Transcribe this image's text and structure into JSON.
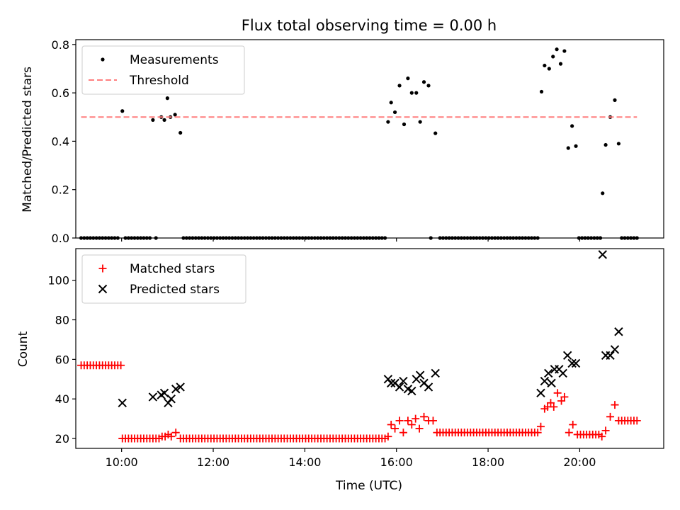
{
  "chart_data": [
    {
      "type": "scatter",
      "title": "Flux total observing time = 0.00 h",
      "xlabel": "",
      "ylabel": "Matched/Predicted stars",
      "xlim": [
        "09:00",
        "21:50"
      ],
      "ylim": [
        0,
        0.82
      ],
      "yticks": [
        0.0,
        0.2,
        0.4,
        0.6,
        0.8
      ],
      "ytick_labels": [
        "0.0",
        "0.2",
        "0.4",
        "0.6",
        "0.8"
      ],
      "legend_position": "top-left",
      "series": [
        {
          "name": "Measurements",
          "kind": "points",
          "color": "#000000",
          "zero_points": [
            "09:07",
            "09:11",
            "09:15",
            "09:19",
            "09:23",
            "09:27",
            "09:31",
            "09:35",
            "09:39",
            "09:43",
            "09:47",
            "09:51",
            "09:55",
            "10:05",
            "10:09",
            "10:13",
            "10:17",
            "10:21",
            "10:25",
            "10:29",
            "10:33",
            "10:37",
            "10:45",
            "11:21",
            "11:25",
            "11:29",
            "11:33",
            "11:37",
            "11:41",
            "11:45",
            "11:49",
            "11:53",
            "11:57",
            "12:01",
            "12:05",
            "12:09",
            "12:13",
            "12:17",
            "12:21",
            "12:25",
            "12:29",
            "12:33",
            "12:37",
            "12:41",
            "12:45",
            "12:49",
            "12:53",
            "12:57",
            "13:01",
            "13:05",
            "13:09",
            "13:13",
            "13:17",
            "13:21",
            "13:25",
            "13:29",
            "13:33",
            "13:37",
            "13:41",
            "13:45",
            "13:49",
            "13:53",
            "13:57",
            "14:01",
            "14:05",
            "14:09",
            "14:13",
            "14:17",
            "14:21",
            "14:25",
            "14:29",
            "14:33",
            "14:37",
            "14:41",
            "14:45",
            "14:49",
            "14:53",
            "14:57",
            "15:01",
            "15:05",
            "15:09",
            "15:13",
            "15:17",
            "15:21",
            "15:25",
            "15:29",
            "15:33",
            "15:37",
            "15:41",
            "15:45",
            "16:45",
            "16:57",
            "17:01",
            "17:05",
            "17:09",
            "17:13",
            "17:17",
            "17:21",
            "17:25",
            "17:29",
            "17:33",
            "17:37",
            "17:41",
            "17:45",
            "17:49",
            "17:53",
            "17:57",
            "18:01",
            "18:05",
            "18:09",
            "18:13",
            "18:17",
            "18:21",
            "18:25",
            "18:29",
            "18:33",
            "18:37",
            "18:41",
            "18:45",
            "18:49",
            "18:53",
            "18:57",
            "19:01",
            "19:05",
            "19:59",
            "20:03",
            "20:07",
            "20:11",
            "20:15",
            "20:19",
            "20:23",
            "20:27",
            "20:55",
            "20:59",
            "21:03",
            "21:07",
            "21:11",
            "21:15"
          ],
          "points": [
            {
              "x": "10:01",
              "y": 0.525
            },
            {
              "x": "10:41",
              "y": 0.488
            },
            {
              "x": "10:52",
              "y": 0.5
            },
            {
              "x": "10:56",
              "y": 0.488
            },
            {
              "x": "11:00",
              "y": 0.578
            },
            {
              "x": "11:04",
              "y": 0.5
            },
            {
              "x": "11:10",
              "y": 0.51
            },
            {
              "x": "11:17",
              "y": 0.435
            },
            {
              "x": "15:49",
              "y": 0.48
            },
            {
              "x": "15:53",
              "y": 0.56
            },
            {
              "x": "15:58",
              "y": 0.52
            },
            {
              "x": "16:04",
              "y": 0.63
            },
            {
              "x": "16:10",
              "y": 0.47
            },
            {
              "x": "16:15",
              "y": 0.66
            },
            {
              "x": "16:20",
              "y": 0.6
            },
            {
              "x": "16:26",
              "y": 0.6
            },
            {
              "x": "16:31",
              "y": 0.48
            },
            {
              "x": "16:36",
              "y": 0.645
            },
            {
              "x": "16:42",
              "y": 0.63
            },
            {
              "x": "16:51",
              "y": 0.433
            },
            {
              "x": "19:10",
              "y": 0.605
            },
            {
              "x": "19:14",
              "y": 0.713
            },
            {
              "x": "19:20",
              "y": 0.7
            },
            {
              "x": "19:25",
              "y": 0.75
            },
            {
              "x": "19:30",
              "y": 0.78
            },
            {
              "x": "19:35",
              "y": 0.72
            },
            {
              "x": "19:40",
              "y": 0.773
            },
            {
              "x": "19:45",
              "y": 0.372
            },
            {
              "x": "19:50",
              "y": 0.463
            },
            {
              "x": "19:55",
              "y": 0.38
            },
            {
              "x": "20:30",
              "y": 0.185
            },
            {
              "x": "20:34",
              "y": 0.385
            },
            {
              "x": "20:40",
              "y": 0.5
            },
            {
              "x": "20:46",
              "y": 0.57
            },
            {
              "x": "20:51",
              "y": 0.39
            }
          ]
        },
        {
          "name": "Threshold",
          "kind": "dashed-line",
          "color": "#ff7f7f",
          "x": [
            "09:07",
            "21:15"
          ],
          "y": [
            0.5,
            0.5
          ]
        }
      ]
    },
    {
      "type": "scatter",
      "title": "",
      "xlabel": "Time (UTC)",
      "ylabel": "Count",
      "xlim": [
        "09:00",
        "21:50"
      ],
      "ylim": [
        15,
        116
      ],
      "xticks": [
        "10:00",
        "12:00",
        "14:00",
        "16:00",
        "18:00",
        "20:00"
      ],
      "yticks": [
        20,
        40,
        60,
        80,
        100
      ],
      "ytick_labels": [
        "20",
        "40",
        "60",
        "80",
        "100"
      ],
      "legend_position": "top-left",
      "series": [
        {
          "name": "Matched stars",
          "marker": "+",
          "color": "#ff0000",
          "runs": [
            {
              "from": "09:07",
              "to": "09:59",
              "step": 4,
              "y": 57
            },
            {
              "from": "10:01",
              "to": "10:49",
              "step": 4,
              "y": 20
            },
            {
              "from": "11:17",
              "to": "15:45",
              "step": 4,
              "y": 20
            },
            {
              "from": "16:53",
              "to": "19:05",
              "step": 4,
              "y": 23
            },
            {
              "from": "19:57",
              "to": "20:25",
              "step": 4,
              "y": 22
            },
            {
              "from": "20:51",
              "to": "21:15",
              "step": 4,
              "y": 29
            }
          ],
          "points": [
            {
              "x": "10:53",
              "y": 21
            },
            {
              "x": "10:57",
              "y": 21
            },
            {
              "x": "11:01",
              "y": 22
            },
            {
              "x": "11:05",
              "y": 21
            },
            {
              "x": "11:11",
              "y": 23
            },
            {
              "x": "15:49",
              "y": 21
            },
            {
              "x": "15:53",
              "y": 27
            },
            {
              "x": "15:58",
              "y": 25
            },
            {
              "x": "16:04",
              "y": 29
            },
            {
              "x": "16:09",
              "y": 23
            },
            {
              "x": "16:15",
              "y": 29
            },
            {
              "x": "16:20",
              "y": 27
            },
            {
              "x": "16:25",
              "y": 30
            },
            {
              "x": "16:30",
              "y": 25
            },
            {
              "x": "16:36",
              "y": 31
            },
            {
              "x": "16:42",
              "y": 29
            },
            {
              "x": "16:48",
              "y": 29
            },
            {
              "x": "19:09",
              "y": 26
            },
            {
              "x": "19:14",
              "y": 35
            },
            {
              "x": "19:18",
              "y": 36
            },
            {
              "x": "19:22",
              "y": 38
            },
            {
              "x": "19:26",
              "y": 36
            },
            {
              "x": "19:31",
              "y": 43
            },
            {
              "x": "19:36",
              "y": 39
            },
            {
              "x": "19:40",
              "y": 41
            },
            {
              "x": "19:46",
              "y": 23
            },
            {
              "x": "19:51",
              "y": 27
            },
            {
              "x": "20:29",
              "y": 21
            },
            {
              "x": "20:34",
              "y": 24
            },
            {
              "x": "20:40",
              "y": 31
            },
            {
              "x": "20:46",
              "y": 37
            }
          ]
        },
        {
          "name": "Predicted stars",
          "marker": "x",
          "color": "#000000",
          "points": [
            {
              "x": "10:01",
              "y": 38
            },
            {
              "x": "10:41",
              "y": 41
            },
            {
              "x": "10:52",
              "y": 42
            },
            {
              "x": "10:56",
              "y": 43
            },
            {
              "x": "11:01",
              "y": 38
            },
            {
              "x": "11:05",
              "y": 40
            },
            {
              "x": "11:11",
              "y": 45
            },
            {
              "x": "11:17",
              "y": 46
            },
            {
              "x": "15:49",
              "y": 50
            },
            {
              "x": "15:53",
              "y": 48
            },
            {
              "x": "15:58",
              "y": 48
            },
            {
              "x": "16:04",
              "y": 46
            },
            {
              "x": "16:09",
              "y": 49
            },
            {
              "x": "16:15",
              "y": 45
            },
            {
              "x": "16:20",
              "y": 44
            },
            {
              "x": "16:26",
              "y": 50
            },
            {
              "x": "16:31",
              "y": 52
            },
            {
              "x": "16:36",
              "y": 48
            },
            {
              "x": "16:42",
              "y": 46
            },
            {
              "x": "16:51",
              "y": 53
            },
            {
              "x": "19:09",
              "y": 43
            },
            {
              "x": "19:14",
              "y": 49
            },
            {
              "x": "19:19",
              "y": 53
            },
            {
              "x": "19:23",
              "y": 48
            },
            {
              "x": "19:27",
              "y": 55
            },
            {
              "x": "19:33",
              "y": 55
            },
            {
              "x": "19:38",
              "y": 53
            },
            {
              "x": "19:44",
              "y": 62
            },
            {
              "x": "19:50",
              "y": 58
            },
            {
              "x": "19:55",
              "y": 58
            },
            {
              "x": "20:30",
              "y": 113
            },
            {
              "x": "20:34",
              "y": 62
            },
            {
              "x": "20:40",
              "y": 62
            },
            {
              "x": "20:46",
              "y": 65
            },
            {
              "x": "20:51",
              "y": 74
            }
          ]
        }
      ]
    }
  ]
}
